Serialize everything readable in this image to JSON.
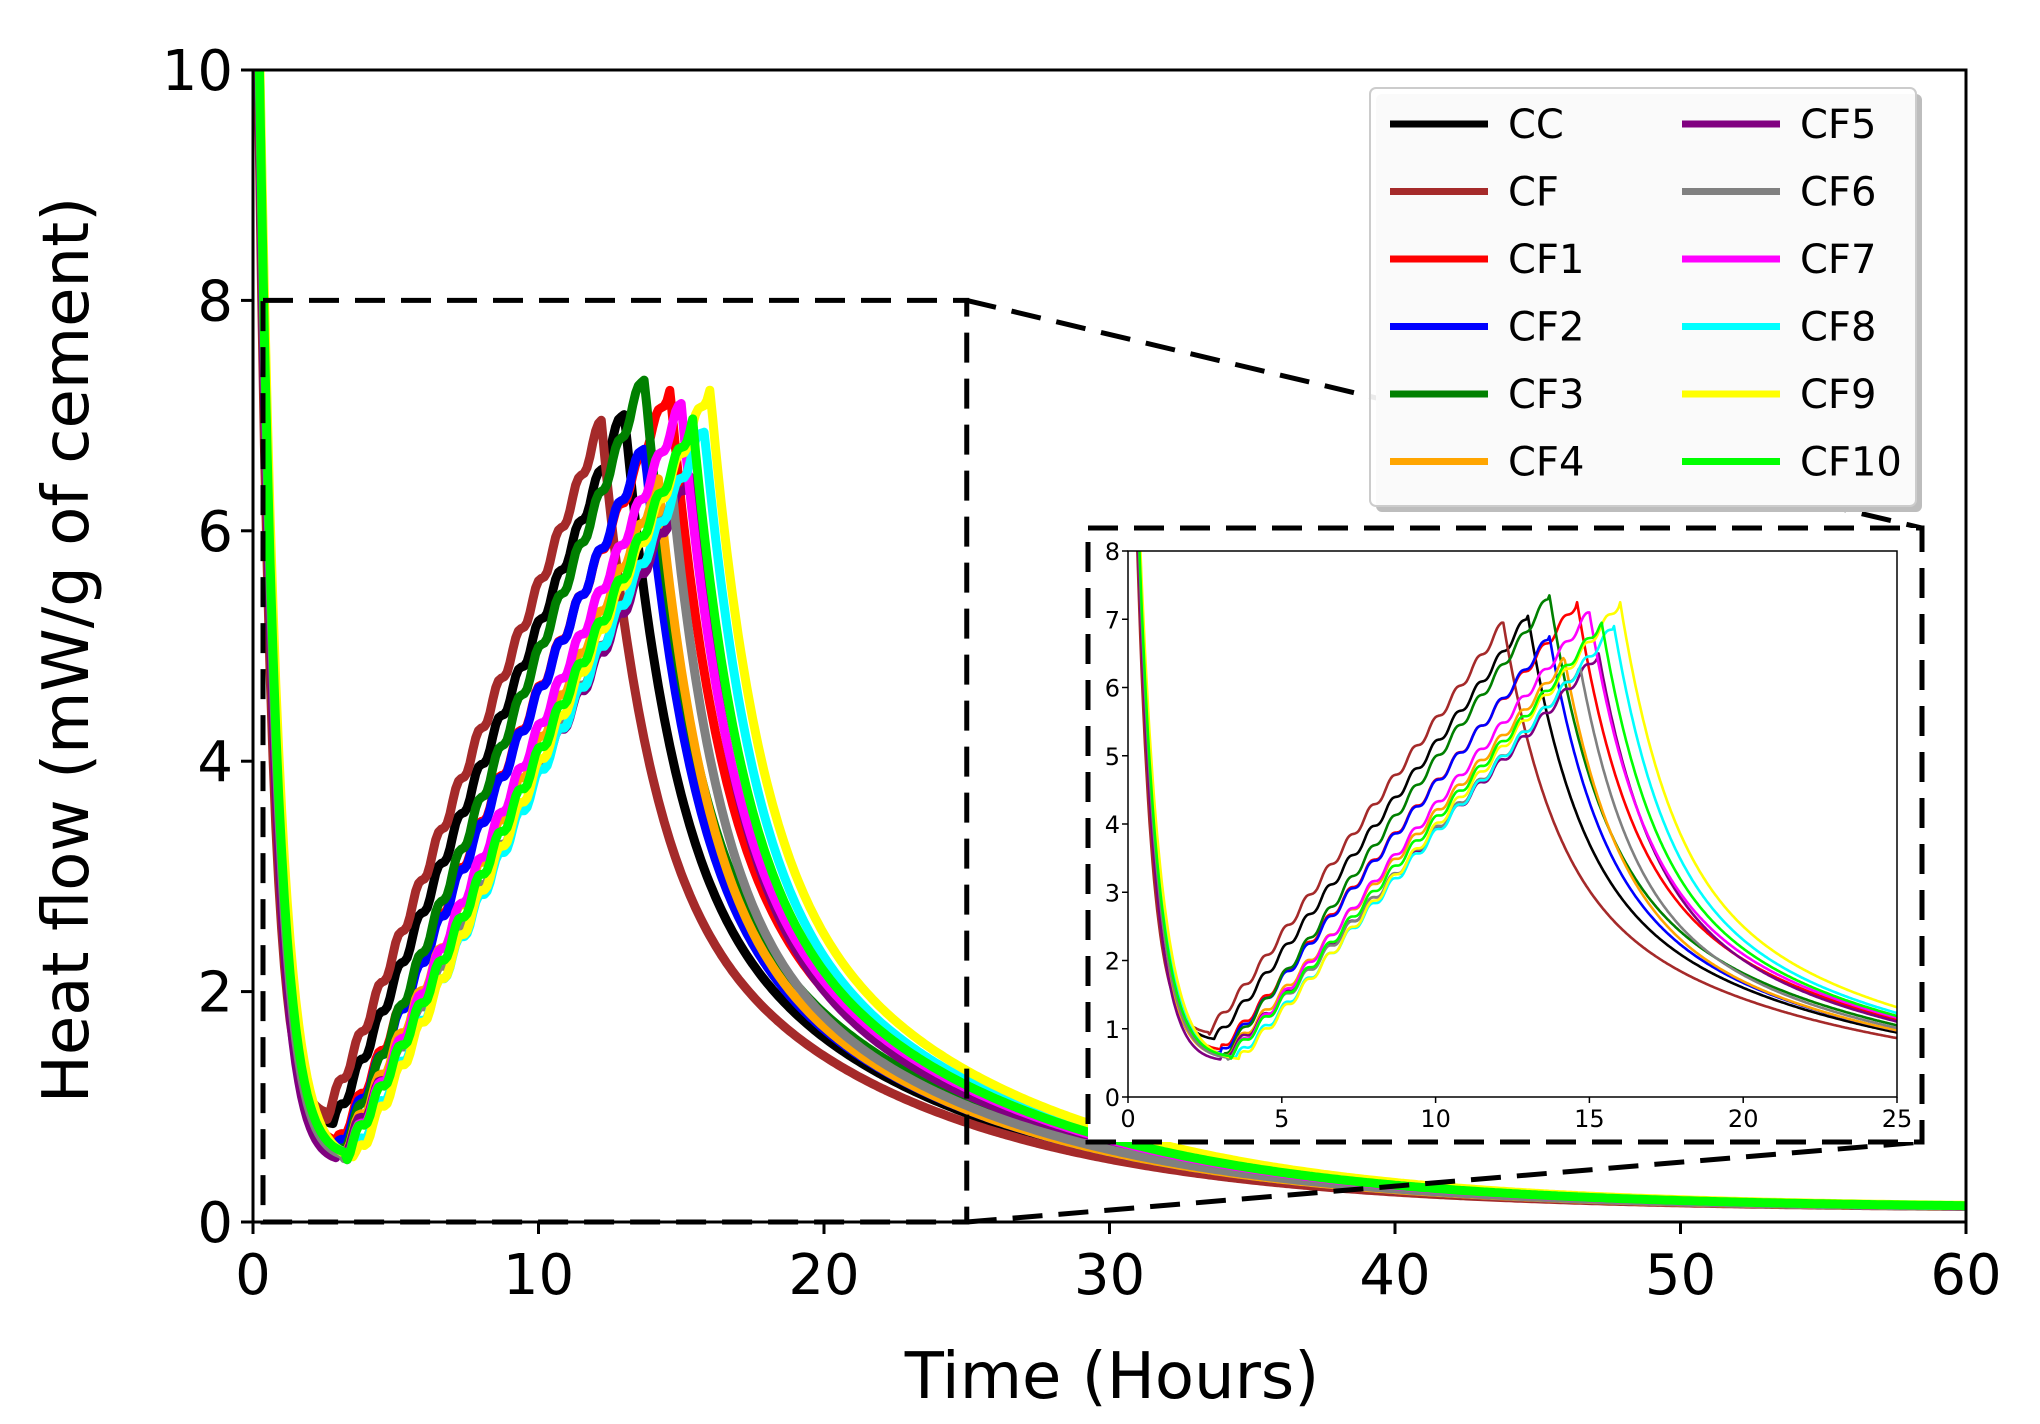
{
  "chart_data": {
    "type": "line",
    "title": "",
    "xlabel": "Time (Hours)",
    "ylabel": "Heat flow (mW/g of cement)",
    "xlim": [
      0,
      60
    ],
    "ylim": [
      0,
      10
    ],
    "xticks": [
      "0",
      "10",
      "20",
      "30",
      "40",
      "50",
      "60"
    ],
    "yticks": [
      "0",
      "2",
      "4",
      "6",
      "8",
      "10"
    ],
    "legend_position": "top-right",
    "legend_columns": 2,
    "series": [
      {
        "name": "CC",
        "color": "#000000",
        "peak_time": 13.0,
        "peak_value": 7.05,
        "min_time": 2.8,
        "min_value": 0.85
      },
      {
        "name": "CF",
        "color": "#a52a2a",
        "peak_time": 12.2,
        "peak_value": 6.95,
        "min_time": 2.6,
        "min_value": 0.95
      },
      {
        "name": "CF1",
        "color": "#ff0000",
        "peak_time": 14.6,
        "peak_value": 7.25,
        "min_time": 3.0,
        "min_value": 0.7
      },
      {
        "name": "CF2",
        "color": "#0000ff",
        "peak_time": 13.7,
        "peak_value": 6.75,
        "min_time": 3.0,
        "min_value": 0.65
      },
      {
        "name": "CF3",
        "color": "#008000",
        "peak_time": 13.7,
        "peak_value": 7.35,
        "min_time": 3.1,
        "min_value": 0.62
      },
      {
        "name": "CF4",
        "color": "#ffa500",
        "peak_time": 14.2,
        "peak_value": 6.4,
        "min_time": 3.1,
        "min_value": 0.6
      },
      {
        "name": "CF5",
        "color": "#800080",
        "peak_time": 15.3,
        "peak_value": 6.5,
        "min_time": 3.0,
        "min_value": 0.55
      },
      {
        "name": "CF6",
        "color": "#808080",
        "peak_time": 14.7,
        "peak_value": 6.3,
        "min_time": 3.2,
        "min_value": 0.58
      },
      {
        "name": "CF7",
        "color": "#ff00ff",
        "peak_time": 15.0,
        "peak_value": 7.1,
        "min_time": 3.3,
        "min_value": 0.6
      },
      {
        "name": "CF8",
        "color": "#00ffff",
        "peak_time": 15.8,
        "peak_value": 6.9,
        "min_time": 3.5,
        "min_value": 0.58
      },
      {
        "name": "CF9",
        "color": "#ffff00",
        "peak_time": 16.0,
        "peak_value": 7.25,
        "min_time": 3.6,
        "min_value": 0.56
      },
      {
        "name": "CF10",
        "color": "#00ff00",
        "peak_time": 15.4,
        "peak_value": 6.95,
        "min_time": 3.3,
        "min_value": 0.6
      }
    ],
    "inset": {
      "xlim": [
        0,
        25
      ],
      "ylim": [
        0,
        8
      ],
      "xticks": [
        "0",
        "5",
        "10",
        "15",
        "20",
        "25"
      ],
      "yticks": [
        "0",
        "1",
        "2",
        "3",
        "4",
        "5",
        "6",
        "7",
        "8"
      ],
      "zoom_region": {
        "x": [
          0,
          25
        ],
        "y": [
          0,
          8
        ]
      }
    }
  }
}
